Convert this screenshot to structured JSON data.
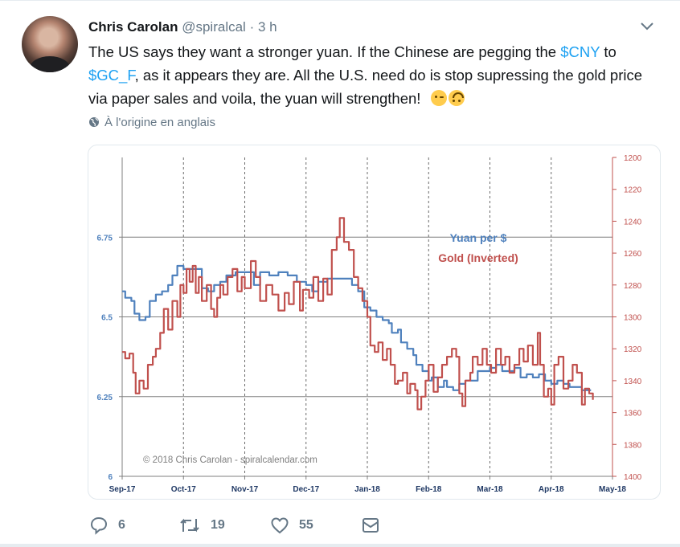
{
  "tweet": {
    "author_name": "Chris Carolan",
    "handle": "@spiralcal",
    "separator": "·",
    "time": "3 h",
    "text_parts": [
      "The US says they want a stronger yuan.  If the Chinese are pegging the ",
      "$CNY",
      " to ",
      "$GC_F",
      ", as it appears they are. All the U.S. need do is stop supressing the gold price via paper sales and voila, the yuan will strengthen!"
    ],
    "emojis": [
      "wink-face-emoji",
      "upside-down-face-emoji"
    ],
    "translate_label": "À l'origine en anglais"
  },
  "actions": {
    "replies": "6",
    "retweets": "19",
    "likes": "55"
  },
  "icons": {
    "reply": "reply-icon",
    "retweet": "retweet-icon",
    "like": "heart-icon",
    "dm": "envelope-icon",
    "caret": "chevron-down-icon",
    "globe": "globe-icon"
  },
  "colors": {
    "yuan": "#4f81bd",
    "gold": "#c0504d",
    "link": "#1da1f2",
    "axis_right": "#c0504d"
  },
  "chart_data": {
    "type": "line",
    "legend": [
      "Yuan per $",
      "Gold (Inverted)"
    ],
    "legend_placement": "top-right",
    "annotation": "© 2018 Chris Carolan - spiralcalendar.com",
    "x_tick_labels": [
      "Sep-17",
      "Oct-17",
      "Nov-17",
      "Dec-17",
      "Jan-18",
      "Feb-18",
      "Mar-18",
      "Apr-18",
      "May-18"
    ],
    "y_left": {
      "ticks": [
        "6",
        "6.25",
        "6.5",
        "6.75"
      ],
      "range": [
        6.0,
        7.0
      ]
    },
    "y_right": {
      "ticks": [
        "1200",
        "1220",
        "1240",
        "1260",
        "1280",
        "1300",
        "1320",
        "1340",
        "1360",
        "1380",
        "1400"
      ],
      "range": [
        1200,
        1400
      ],
      "inverted": true
    },
    "x_range": [
      0,
      8
    ],
    "series": [
      {
        "name": "Yuan per $",
        "axis": "left",
        "points": [
          [
            0.0,
            6.58
          ],
          [
            0.05,
            6.56
          ],
          [
            0.15,
            6.55
          ],
          [
            0.2,
            6.51
          ],
          [
            0.28,
            6.49
          ],
          [
            0.38,
            6.5
          ],
          [
            0.45,
            6.55
          ],
          [
            0.55,
            6.57
          ],
          [
            0.65,
            6.58
          ],
          [
            0.75,
            6.6
          ],
          [
            0.82,
            6.63
          ],
          [
            0.9,
            6.66
          ],
          [
            1.0,
            6.65
          ],
          [
            1.15,
            6.65
          ],
          [
            1.25,
            6.65
          ],
          [
            1.3,
            6.59
          ],
          [
            1.4,
            6.58
          ],
          [
            1.5,
            6.6
          ],
          [
            1.6,
            6.61
          ],
          [
            1.7,
            6.63
          ],
          [
            1.85,
            6.64
          ],
          [
            2.0,
            6.64
          ],
          [
            2.15,
            6.6
          ],
          [
            2.25,
            6.64
          ],
          [
            2.4,
            6.63
          ],
          [
            2.55,
            6.64
          ],
          [
            2.7,
            6.63
          ],
          [
            2.85,
            6.61
          ],
          [
            3.0,
            6.6
          ],
          [
            3.1,
            6.58
          ],
          [
            3.2,
            6.61
          ],
          [
            3.35,
            6.62
          ],
          [
            3.5,
            6.62
          ],
          [
            3.65,
            6.62
          ],
          [
            3.75,
            6.6
          ],
          [
            3.85,
            6.58
          ],
          [
            3.95,
            6.53
          ],
          [
            4.05,
            6.52
          ],
          [
            4.15,
            6.5
          ],
          [
            4.25,
            6.49
          ],
          [
            4.35,
            6.48
          ],
          [
            4.4,
            6.45
          ],
          [
            4.5,
            6.46
          ],
          [
            4.55,
            6.42
          ],
          [
            4.65,
            6.4
          ],
          [
            4.75,
            6.38
          ],
          [
            4.8,
            6.35
          ],
          [
            4.9,
            6.33
          ],
          [
            5.0,
            6.3
          ],
          [
            5.05,
            6.31
          ],
          [
            5.15,
            6.28
          ],
          [
            5.25,
            6.3
          ],
          [
            5.3,
            6.28
          ],
          [
            5.4,
            6.27
          ],
          [
            5.5,
            6.29
          ],
          [
            5.6,
            6.3
          ],
          [
            5.7,
            6.3
          ],
          [
            5.8,
            6.33
          ],
          [
            5.9,
            6.33
          ],
          [
            6.0,
            6.34
          ],
          [
            6.1,
            6.35
          ],
          [
            6.2,
            6.33
          ],
          [
            6.3,
            6.33
          ],
          [
            6.4,
            6.34
          ],
          [
            6.5,
            6.31
          ],
          [
            6.6,
            6.32
          ],
          [
            6.7,
            6.31
          ],
          [
            6.8,
            6.32
          ],
          [
            6.9,
            6.3
          ],
          [
            7.0,
            6.29
          ],
          [
            7.1,
            6.3
          ],
          [
            7.2,
            6.29
          ],
          [
            7.3,
            6.28
          ],
          [
            7.4,
            6.28
          ],
          [
            7.5,
            6.27
          ],
          [
            7.65,
            6.27
          ]
        ]
      },
      {
        "name": "Gold (Inverted)",
        "axis": "right",
        "points": [
          [
            0.0,
            1322
          ],
          [
            0.05,
            1326
          ],
          [
            0.12,
            1323
          ],
          [
            0.18,
            1335
          ],
          [
            0.22,
            1348
          ],
          [
            0.28,
            1340
          ],
          [
            0.35,
            1345
          ],
          [
            0.42,
            1330
          ],
          [
            0.5,
            1325
          ],
          [
            0.55,
            1320
          ],
          [
            0.62,
            1310
          ],
          [
            0.68,
            1295
          ],
          [
            0.75,
            1308
          ],
          [
            0.82,
            1290
          ],
          [
            0.9,
            1300
          ],
          [
            0.95,
            1280
          ],
          [
            1.0,
            1285
          ],
          [
            1.05,
            1270
          ],
          [
            1.1,
            1278
          ],
          [
            1.15,
            1268
          ],
          [
            1.2,
            1285
          ],
          [
            1.25,
            1275
          ],
          [
            1.3,
            1290
          ],
          [
            1.38,
            1280
          ],
          [
            1.45,
            1295
          ],
          [
            1.5,
            1300
          ],
          [
            1.55,
            1288
          ],
          [
            1.6,
            1280
          ],
          [
            1.65,
            1286
          ],
          [
            1.72,
            1275
          ],
          [
            1.8,
            1270
          ],
          [
            1.88,
            1284
          ],
          [
            1.95,
            1275
          ],
          [
            2.0,
            1282
          ],
          [
            2.1,
            1265
          ],
          [
            2.18,
            1275
          ],
          [
            2.25,
            1290
          ],
          [
            2.35,
            1280
          ],
          [
            2.45,
            1286
          ],
          [
            2.55,
            1296
          ],
          [
            2.65,
            1285
          ],
          [
            2.72,
            1292
          ],
          [
            2.8,
            1278
          ],
          [
            2.9,
            1296
          ],
          [
            2.95,
            1283
          ],
          [
            3.05,
            1288
          ],
          [
            3.12,
            1275
          ],
          [
            3.2,
            1290
          ],
          [
            3.28,
            1276
          ],
          [
            3.35,
            1286
          ],
          [
            3.42,
            1258
          ],
          [
            3.5,
            1250
          ],
          [
            3.55,
            1238
          ],
          [
            3.62,
            1253
          ],
          [
            3.7,
            1258
          ],
          [
            3.78,
            1275
          ],
          [
            3.85,
            1282
          ],
          [
            3.92,
            1290
          ],
          [
            4.0,
            1300
          ],
          [
            4.05,
            1318
          ],
          [
            4.12,
            1322
          ],
          [
            4.18,
            1316
          ],
          [
            4.25,
            1327
          ],
          [
            4.32,
            1320
          ],
          [
            4.38,
            1330
          ],
          [
            4.45,
            1342
          ],
          [
            4.5,
            1340
          ],
          [
            4.58,
            1335
          ],
          [
            4.65,
            1348
          ],
          [
            4.7,
            1342
          ],
          [
            4.78,
            1346
          ],
          [
            4.82,
            1358
          ],
          [
            4.88,
            1350
          ],
          [
            4.95,
            1340
          ],
          [
            5.0,
            1330
          ],
          [
            5.08,
            1347
          ],
          [
            5.15,
            1338
          ],
          [
            5.22,
            1330
          ],
          [
            5.3,
            1325
          ],
          [
            5.38,
            1320
          ],
          [
            5.45,
            1325
          ],
          [
            5.5,
            1348
          ],
          [
            5.55,
            1356
          ],
          [
            5.6,
            1340
          ],
          [
            5.68,
            1335
          ],
          [
            5.72,
            1325
          ],
          [
            5.8,
            1330
          ],
          [
            5.88,
            1320
          ],
          [
            5.95,
            1330
          ],
          [
            6.02,
            1335
          ],
          [
            6.1,
            1320
          ],
          [
            6.18,
            1330
          ],
          [
            6.25,
            1325
          ],
          [
            6.32,
            1335
          ],
          [
            6.4,
            1330
          ],
          [
            6.48,
            1320
          ],
          [
            6.55,
            1328
          ],
          [
            6.62,
            1318
          ],
          [
            6.7,
            1330
          ],
          [
            6.78,
            1310
          ],
          [
            6.82,
            1330
          ],
          [
            6.88,
            1350
          ],
          [
            6.95,
            1345
          ],
          [
            7.0,
            1355
          ],
          [
            7.05,
            1330
          ],
          [
            7.12,
            1325
          ],
          [
            7.2,
            1345
          ],
          [
            7.28,
            1340
          ],
          [
            7.35,
            1330
          ],
          [
            7.42,
            1335
          ],
          [
            7.5,
            1355
          ],
          [
            7.55,
            1345
          ],
          [
            7.62,
            1348
          ],
          [
            7.68,
            1352
          ]
        ]
      }
    ]
  }
}
